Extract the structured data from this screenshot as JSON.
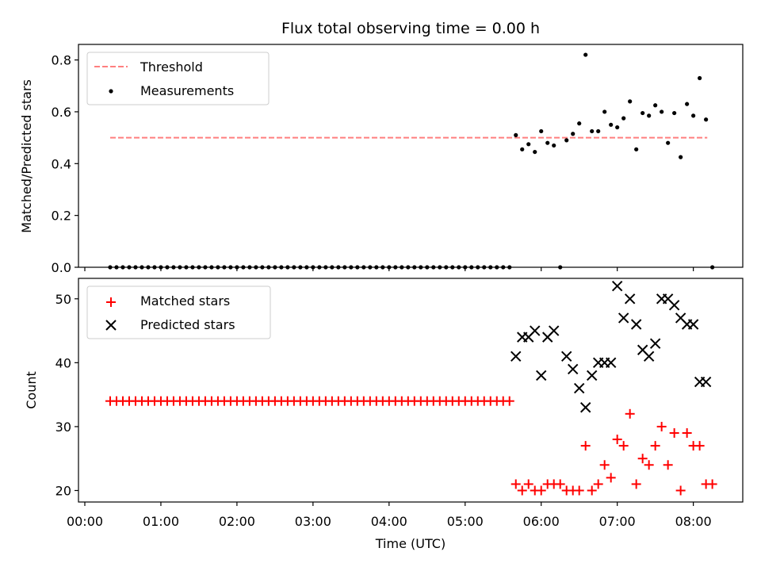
{
  "figure": {
    "title": "Flux total observing time = 0.00 h"
  },
  "chart_data": [
    {
      "type": "scatter",
      "ylabel": "Matched/Predicted stars",
      "ylim": [
        0,
        0.86
      ],
      "xlim": [
        "23:55",
        "08:39"
      ],
      "grid": false,
      "legend_position": "top-left",
      "yticks": [
        {
          "value": 0.0,
          "label": "0.0"
        },
        {
          "value": 0.2,
          "label": "0.2"
        },
        {
          "value": 0.4,
          "label": "0.4"
        },
        {
          "value": 0.6,
          "label": "0.6"
        },
        {
          "value": 0.8,
          "label": "0.8"
        }
      ],
      "threshold": {
        "name": "Threshold",
        "value": 0.5,
        "x_start": "00:20",
        "x_end": "08:11",
        "color": "#ff7f7f",
        "style": "dashed"
      },
      "measurements": {
        "name": "Measurements",
        "color": "#000000",
        "points": [
          [
            "00:20",
            0
          ],
          [
            "00:25",
            0
          ],
          [
            "00:30",
            0
          ],
          [
            "00:35",
            0
          ],
          [
            "00:40",
            0
          ],
          [
            "00:45",
            0
          ],
          [
            "00:50",
            0
          ],
          [
            "00:55",
            0
          ],
          [
            "01:00",
            0
          ],
          [
            "01:05",
            0
          ],
          [
            "01:10",
            0
          ],
          [
            "01:15",
            0
          ],
          [
            "01:20",
            0
          ],
          [
            "01:25",
            0
          ],
          [
            "01:30",
            0
          ],
          [
            "01:35",
            0
          ],
          [
            "01:40",
            0
          ],
          [
            "01:45",
            0
          ],
          [
            "01:50",
            0
          ],
          [
            "01:55",
            0
          ],
          [
            "02:00",
            0
          ],
          [
            "02:05",
            0
          ],
          [
            "02:10",
            0
          ],
          [
            "02:15",
            0
          ],
          [
            "02:20",
            0
          ],
          [
            "02:25",
            0
          ],
          [
            "02:30",
            0
          ],
          [
            "02:35",
            0
          ],
          [
            "02:40",
            0
          ],
          [
            "02:45",
            0
          ],
          [
            "02:50",
            0
          ],
          [
            "02:55",
            0
          ],
          [
            "03:00",
            0
          ],
          [
            "03:05",
            0
          ],
          [
            "03:10",
            0
          ],
          [
            "03:15",
            0
          ],
          [
            "03:20",
            0
          ],
          [
            "03:25",
            0
          ],
          [
            "03:30",
            0
          ],
          [
            "03:35",
            0
          ],
          [
            "03:40",
            0
          ],
          [
            "03:45",
            0
          ],
          [
            "03:50",
            0
          ],
          [
            "03:55",
            0
          ],
          [
            "04:00",
            0
          ],
          [
            "04:05",
            0
          ],
          [
            "04:10",
            0
          ],
          [
            "04:15",
            0
          ],
          [
            "04:20",
            0
          ],
          [
            "04:25",
            0
          ],
          [
            "04:30",
            0
          ],
          [
            "04:35",
            0
          ],
          [
            "04:40",
            0
          ],
          [
            "04:45",
            0
          ],
          [
            "04:50",
            0
          ],
          [
            "04:55",
            0
          ],
          [
            "05:00",
            0
          ],
          [
            "05:05",
            0
          ],
          [
            "05:10",
            0
          ],
          [
            "05:15",
            0
          ],
          [
            "05:20",
            0
          ],
          [
            "05:25",
            0
          ],
          [
            "05:30",
            0
          ],
          [
            "05:35",
            0
          ],
          [
            "05:40",
            0.51
          ],
          [
            "05:45",
            0.455
          ],
          [
            "05:50",
            0.475
          ],
          [
            "05:55",
            0.445
          ],
          [
            "06:00",
            0.525
          ],
          [
            "06:05",
            0.48
          ],
          [
            "06:10",
            0.47
          ],
          [
            "06:15",
            0.0
          ],
          [
            "06:20",
            0.49
          ],
          [
            "06:25",
            0.515
          ],
          [
            "06:30",
            0.555
          ],
          [
            "06:35",
            0.82
          ],
          [
            "06:40",
            0.525
          ],
          [
            "06:45",
            0.525
          ],
          [
            "06:50",
            0.6
          ],
          [
            "06:55",
            0.55
          ],
          [
            "07:00",
            0.54
          ],
          [
            "07:05",
            0.575
          ],
          [
            "07:10",
            0.64
          ],
          [
            "07:15",
            0.455
          ],
          [
            "07:20",
            0.595
          ],
          [
            "07:25",
            0.585
          ],
          [
            "07:30",
            0.625
          ],
          [
            "07:35",
            0.6
          ],
          [
            "07:40",
            0.48
          ],
          [
            "07:45",
            0.595
          ],
          [
            "07:50",
            0.425
          ],
          [
            "07:55",
            0.63
          ],
          [
            "08:00",
            0.585
          ],
          [
            "08:05",
            0.73
          ],
          [
            "08:10",
            0.57
          ],
          [
            "08:15",
            0.0
          ]
        ]
      }
    },
    {
      "type": "scatter",
      "xlabel": "Time (UTC)",
      "ylabel": "Count",
      "ylim": [
        18.2,
        53.2
      ],
      "xlim": [
        "23:55",
        "08:39"
      ],
      "grid": false,
      "legend_position": "top-left",
      "xticks": [
        "00:00",
        "01:00",
        "02:00",
        "03:00",
        "04:00",
        "05:00",
        "06:00",
        "07:00",
        "08:00"
      ],
      "yticks": [
        {
          "value": 20,
          "label": "20"
        },
        {
          "value": 30,
          "label": "30"
        },
        {
          "value": 40,
          "label": "40"
        },
        {
          "value": 50,
          "label": "50"
        }
      ],
      "series": [
        {
          "name": "Matched stars",
          "marker": "plus",
          "color": "#ff0000",
          "points": [
            [
              "00:20",
              34
            ],
            [
              "00:25",
              34
            ],
            [
              "00:30",
              34
            ],
            [
              "00:35",
              34
            ],
            [
              "00:40",
              34
            ],
            [
              "00:45",
              34
            ],
            [
              "00:50",
              34
            ],
            [
              "00:55",
              34
            ],
            [
              "01:00",
              34
            ],
            [
              "01:05",
              34
            ],
            [
              "01:10",
              34
            ],
            [
              "01:15",
              34
            ],
            [
              "01:20",
              34
            ],
            [
              "01:25",
              34
            ],
            [
              "01:30",
              34
            ],
            [
              "01:35",
              34
            ],
            [
              "01:40",
              34
            ],
            [
              "01:45",
              34
            ],
            [
              "01:50",
              34
            ],
            [
              "01:55",
              34
            ],
            [
              "02:00",
              34
            ],
            [
              "02:05",
              34
            ],
            [
              "02:10",
              34
            ],
            [
              "02:15",
              34
            ],
            [
              "02:20",
              34
            ],
            [
              "02:25",
              34
            ],
            [
              "02:30",
              34
            ],
            [
              "02:35",
              34
            ],
            [
              "02:40",
              34
            ],
            [
              "02:45",
              34
            ],
            [
              "02:50",
              34
            ],
            [
              "02:55",
              34
            ],
            [
              "03:00",
              34
            ],
            [
              "03:05",
              34
            ],
            [
              "03:10",
              34
            ],
            [
              "03:15",
              34
            ],
            [
              "03:20",
              34
            ],
            [
              "03:25",
              34
            ],
            [
              "03:30",
              34
            ],
            [
              "03:35",
              34
            ],
            [
              "03:40",
              34
            ],
            [
              "03:45",
              34
            ],
            [
              "03:50",
              34
            ],
            [
              "03:55",
              34
            ],
            [
              "04:00",
              34
            ],
            [
              "04:05",
              34
            ],
            [
              "04:10",
              34
            ],
            [
              "04:15",
              34
            ],
            [
              "04:20",
              34
            ],
            [
              "04:25",
              34
            ],
            [
              "04:30",
              34
            ],
            [
              "04:35",
              34
            ],
            [
              "04:40",
              34
            ],
            [
              "04:45",
              34
            ],
            [
              "04:50",
              34
            ],
            [
              "04:55",
              34
            ],
            [
              "05:00",
              34
            ],
            [
              "05:05",
              34
            ],
            [
              "05:10",
              34
            ],
            [
              "05:15",
              34
            ],
            [
              "05:20",
              34
            ],
            [
              "05:25",
              34
            ],
            [
              "05:30",
              34
            ],
            [
              "05:35",
              34
            ],
            [
              "05:40",
              21
            ],
            [
              "05:45",
              20
            ],
            [
              "05:50",
              21
            ],
            [
              "05:55",
              20
            ],
            [
              "06:00",
              20
            ],
            [
              "06:05",
              21
            ],
            [
              "06:10",
              21
            ],
            [
              "06:15",
              21
            ],
            [
              "06:20",
              20
            ],
            [
              "06:25",
              20
            ],
            [
              "06:30",
              20
            ],
            [
              "06:35",
              27
            ],
            [
              "06:40",
              20
            ],
            [
              "06:45",
              21
            ],
            [
              "06:50",
              24
            ],
            [
              "06:55",
              22
            ],
            [
              "07:00",
              28
            ],
            [
              "07:05",
              27
            ],
            [
              "07:10",
              32
            ],
            [
              "07:15",
              21
            ],
            [
              "07:20",
              25
            ],
            [
              "07:25",
              24
            ],
            [
              "07:30",
              27
            ],
            [
              "07:35",
              30
            ],
            [
              "07:40",
              24
            ],
            [
              "07:45",
              29
            ],
            [
              "07:50",
              20
            ],
            [
              "07:55",
              29
            ],
            [
              "08:00",
              27
            ],
            [
              "08:05",
              27
            ],
            [
              "08:10",
              21
            ],
            [
              "08:15",
              21
            ]
          ]
        },
        {
          "name": "Predicted stars",
          "marker": "x",
          "color": "#000000",
          "points": [
            [
              "05:40",
              41
            ],
            [
              "05:45",
              44
            ],
            [
              "05:50",
              44
            ],
            [
              "05:55",
              45
            ],
            [
              "06:00",
              38
            ],
            [
              "06:05",
              44
            ],
            [
              "06:10",
              45
            ],
            [
              "06:20",
              41
            ],
            [
              "06:25",
              39
            ],
            [
              "06:30",
              36
            ],
            [
              "06:35",
              33
            ],
            [
              "06:40",
              38
            ],
            [
              "06:45",
              40
            ],
            [
              "06:50",
              40
            ],
            [
              "06:55",
              40
            ],
            [
              "07:00",
              52
            ],
            [
              "07:05",
              47
            ],
            [
              "07:10",
              50
            ],
            [
              "07:15",
              46
            ],
            [
              "07:20",
              42
            ],
            [
              "07:25",
              41
            ],
            [
              "07:30",
              43
            ],
            [
              "07:35",
              50
            ],
            [
              "07:40",
              50
            ],
            [
              "07:45",
              49
            ],
            [
              "07:50",
              47
            ],
            [
              "07:55",
              46
            ],
            [
              "08:00",
              46
            ],
            [
              "08:05",
              37
            ],
            [
              "08:10",
              37
            ]
          ]
        }
      ]
    }
  ]
}
